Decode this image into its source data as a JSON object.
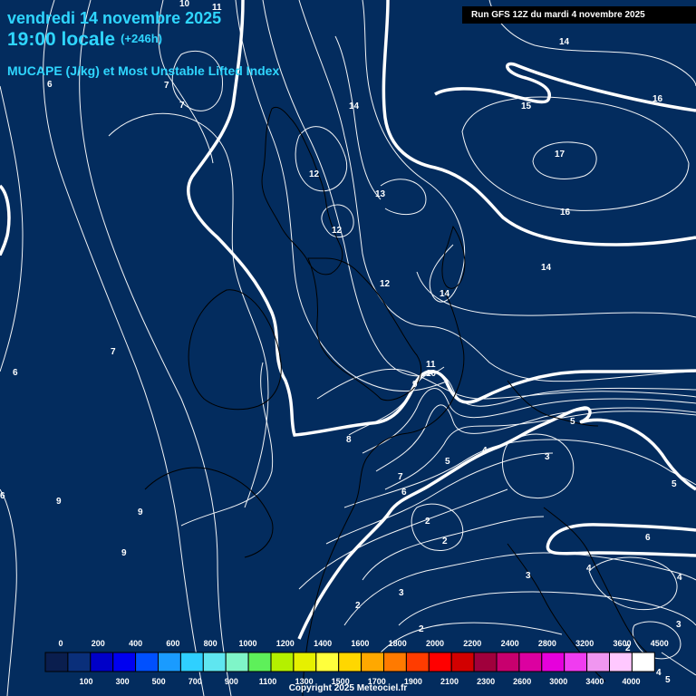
{
  "header": {
    "date": "vendredi 14 novembre 2025",
    "time": "19:00 locale",
    "offset": "(+246h)",
    "parameter": "MUCAPE (J/kg) et Most Unstable Lifted Index"
  },
  "run_info": "Run GFS 12Z du mardi 4 novembre 2025",
  "copyright": "Copyright 2025 Meteociel.fr",
  "legend": {
    "top_labels": [
      "0",
      "200",
      "400",
      "600",
      "800",
      "1000",
      "1200",
      "1400",
      "1600",
      "1800",
      "2000",
      "2200",
      "2400",
      "2800",
      "3200",
      "3600",
      "4500"
    ],
    "bottom_labels": [
      "100",
      "300",
      "500",
      "700",
      "900",
      "1100",
      "1300",
      "1500",
      "1700",
      "1900",
      "2100",
      "2300",
      "2600",
      "3000",
      "3400",
      "4000"
    ],
    "colors": [
      "#0a1e4e",
      "#0a2f7a",
      "#0000c8",
      "#0000f0",
      "#0050ff",
      "#1a9bff",
      "#2fd0ff",
      "#5fe6f0",
      "#7ff5c8",
      "#5ef05a",
      "#b4f000",
      "#e6f000",
      "#ffff3c",
      "#ffd700",
      "#ffa800",
      "#ff7a00",
      "#ff3c00",
      "#ff0000",
      "#d20000",
      "#a0003c",
      "#c8006e",
      "#dc00a0",
      "#e600dc",
      "#f03cf0",
      "#f096f0",
      "#ffc8ff",
      "#ffffff"
    ]
  },
  "contour_labels": [
    "10",
    "11",
    "6",
    "7",
    "7",
    "14",
    "14",
    "15",
    "16",
    "17",
    "16",
    "12",
    "13",
    "12",
    "12",
    "14",
    "14",
    "7",
    "6",
    "11",
    "10",
    "9",
    "8",
    "7",
    "6",
    "5",
    "5",
    "4",
    "3",
    "9",
    "9",
    "9",
    "6",
    "2",
    "2",
    "2",
    "3",
    "2",
    "3",
    "4",
    "4",
    "5",
    "6",
    "3",
    "2",
    "4",
    "5"
  ]
}
